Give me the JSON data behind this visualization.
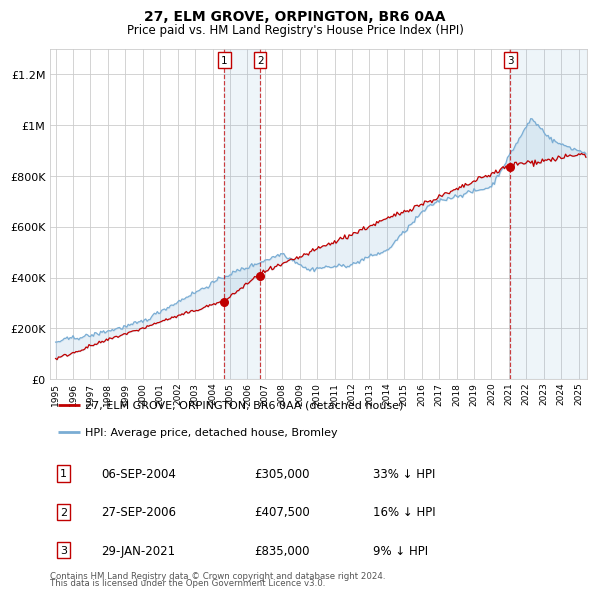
{
  "title": "27, ELM GROVE, ORPINGTON, BR6 0AA",
  "subtitle": "Price paid vs. HM Land Registry's House Price Index (HPI)",
  "legend_label_red": "27, ELM GROVE, ORPINGTON, BR6 0AA (detached house)",
  "legend_label_blue": "HPI: Average price, detached house, Bromley",
  "footer1": "Contains HM Land Registry data © Crown copyright and database right 2024.",
  "footer2": "This data is licensed under the Open Government Licence v3.0.",
  "sales": [
    {
      "num": 1,
      "date": "06-SEP-2004",
      "price": "£305,000",
      "hpi": "33% ↓ HPI",
      "year": 2004.68
    },
    {
      "num": 2,
      "date": "27-SEP-2006",
      "price": "£407,500",
      "hpi": "16% ↓ HPI",
      "year": 2006.73
    },
    {
      "num": 3,
      "date": "29-JAN-2021",
      "price": "£835,000",
      "hpi": "9% ↓ HPI",
      "year": 2021.08
    }
  ],
  "sale_prices": [
    305000,
    407500,
    835000
  ],
  "hpi_color": "#7aadd4",
  "price_color": "#c00000",
  "sale_box_color": "#c00000",
  "grid_color": "#cccccc",
  "bg_color": "#ffffff",
  "ylim_max": 1300000,
  "xlim_start": 1994.7,
  "xlim_end": 2025.5
}
